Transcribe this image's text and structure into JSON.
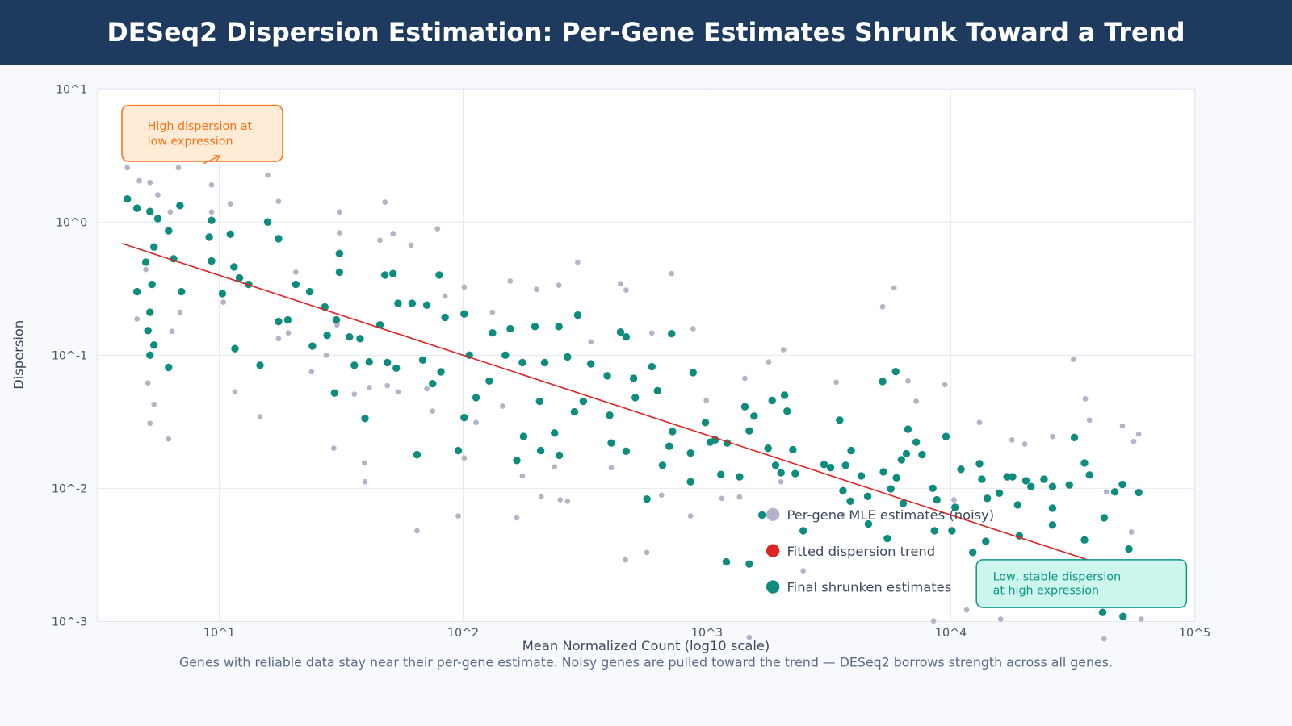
{
  "header": {
    "title": "DESeq2 Dispersion Estimation: Per-Gene Estimates Shrunk Toward a Trend"
  },
  "caption": "Genes with reliable data stay near their per-gene estimate. Noisy genes are pulled toward the trend — DESeq2 borrows strength across all genes.",
  "colors": {
    "header_bg": "#1f3a5f",
    "mle": "#b4b4c8",
    "trend": "#dc2626",
    "final": "#0e8c7e",
    "annot_high_border": "#f97316",
    "annot_high_fill": "#ffebd6",
    "annot_low_border": "#0f9488",
    "annot_low_fill": "#cdf7ec"
  },
  "chart_data": {
    "type": "scatter",
    "xlabel": "Mean Normalized Count (log10 scale)",
    "ylabel": "Dispersion",
    "xscale": "log",
    "yscale": "log",
    "xlim": [
      3.16,
      100000
    ],
    "ylim": [
      0.001,
      10
    ],
    "grid": true,
    "x_ticks": [
      {
        "value": 10,
        "label": "10^1"
      },
      {
        "value": 100,
        "label": "10^2"
      },
      {
        "value": 1000,
        "label": "10^3"
      },
      {
        "value": 10000,
        "label": "10^4"
      },
      {
        "value": 100000,
        "label": "10^5"
      }
    ],
    "y_ticks": [
      {
        "value": 10,
        "label": "10^1"
      },
      {
        "value": 1,
        "label": "10^0"
      },
      {
        "value": 0.1,
        "label": "10^-1"
      },
      {
        "value": 0.01,
        "label": "10^-2"
      },
      {
        "value": 0.001,
        "label": "10^-3"
      }
    ],
    "legend_position": "lower-center-right",
    "legend": [
      "Per-gene MLE estimates (noisy)",
      "Fitted dispersion trend",
      "Final shrunken estimates"
    ],
    "annotations": [
      {
        "text_lines": [
          "High dispersion at",
          "low expression"
        ],
        "position": "top-left"
      },
      {
        "text_lines": [
          "Low, stable dispersion",
          "at high expression"
        ],
        "position": "bottom-right"
      }
    ],
    "series": [
      {
        "name": "Per-gene MLE estimates (noisy)",
        "type": "scatter",
        "points": [
          [
            4.2,
            2.56
          ],
          [
            4.7,
            2.04
          ],
          [
            5.2,
            1.98
          ],
          [
            5.6,
            1.6
          ],
          [
            6.3,
            1.19
          ],
          [
            6.8,
            2.56
          ],
          [
            4.6,
            0.187
          ],
          [
            5.0,
            0.44
          ],
          [
            5.1,
            0.062
          ],
          [
            5.2,
            0.0308
          ],
          [
            5.4,
            0.0427
          ],
          [
            6.2,
            0.0235
          ],
          [
            6.4,
            0.151
          ],
          [
            6.9,
            0.21
          ],
          [
            9.3,
            1.9
          ],
          [
            9.3,
            1.19
          ],
          [
            10.4,
            0.25
          ],
          [
            11.1,
            1.37
          ],
          [
            11.6,
            0.053
          ],
          [
            14.7,
            0.0344
          ],
          [
            15.8,
            2.25
          ],
          [
            17.5,
            1.43
          ],
          [
            17.5,
            0.133
          ],
          [
            19.2,
            0.147
          ],
          [
            20.6,
            0.42
          ],
          [
            23.9,
            0.075
          ],
          [
            27.5,
            0.1
          ],
          [
            29.5,
            0.02
          ],
          [
            31.1,
            1.19
          ],
          [
            31.1,
            0.83
          ],
          [
            30.4,
            0.169
          ],
          [
            35.8,
            0.051
          ],
          [
            39.6,
            0.0112
          ],
          [
            39.4,
            0.0155
          ],
          [
            41.2,
            0.057
          ],
          [
            45.6,
            0.73
          ],
          [
            47.8,
            1.41
          ],
          [
            48.9,
            0.059
          ],
          [
            51.6,
            0.82
          ],
          [
            54.1,
            0.053
          ],
          [
            61.2,
            0.67
          ],
          [
            64.7,
            0.0048
          ],
          [
            71.0,
            0.056
          ],
          [
            75.0,
            0.038
          ],
          [
            78.5,
            0.89
          ],
          [
            84.3,
            0.278
          ],
          [
            95.5,
            0.0062
          ],
          [
            101,
            0.325
          ],
          [
            101,
            0.0169
          ],
          [
            113,
            0.0312
          ],
          [
            132,
            0.21
          ],
          [
            145,
            0.0414
          ],
          [
            156,
            0.36
          ],
          [
            166,
            0.006
          ],
          [
            175,
            0.0124
          ],
          [
            200,
            0.312
          ],
          [
            209,
            0.0087
          ],
          [
            237,
            0.0145
          ],
          [
            247,
            0.335
          ],
          [
            250,
            0.0082
          ],
          [
            268,
            0.008
          ],
          [
            295,
            0.5
          ],
          [
            334,
            0.126
          ],
          [
            405,
            0.0143
          ],
          [
            442,
            0.344
          ],
          [
            463,
            0.0029
          ],
          [
            466,
            0.308
          ],
          [
            567,
            0.0033
          ],
          [
            594,
            0.147
          ],
          [
            651,
            0.0089
          ],
          [
            716,
            0.41
          ],
          [
            856,
            0.0062
          ],
          [
            877,
            0.158
          ],
          [
            993,
            0.0457
          ],
          [
            1150,
            0.0084
          ],
          [
            1360,
            0.0086
          ],
          [
            1430,
            0.067
          ],
          [
            1490,
            0.00076
          ],
          [
            1790,
            0.089
          ],
          [
            2010,
            0.0112
          ],
          [
            2060,
            0.11
          ],
          [
            2480,
            0.0024
          ],
          [
            3390,
            0.0626
          ],
          [
            3610,
            0.0063
          ],
          [
            5250,
            0.231
          ],
          [
            5850,
            0.32
          ],
          [
            6670,
            0.064
          ],
          [
            7210,
            0.045
          ],
          [
            8490,
            0.00101
          ],
          [
            9460,
            0.06
          ],
          [
            10300,
            0.0082
          ],
          [
            11600,
            0.00122
          ],
          [
            13100,
            0.0312
          ],
          [
            16000,
            0.00104
          ],
          [
            17800,
            0.0231
          ],
          [
            20100,
            0.0215
          ],
          [
            26100,
            0.0245
          ],
          [
            31800,
            0.093
          ],
          [
            35600,
            0.0471
          ],
          [
            37000,
            0.0325
          ],
          [
            42500,
            0.00074
          ],
          [
            43400,
            0.0094
          ],
          [
            50500,
            0.0294
          ],
          [
            55000,
            0.0047
          ],
          [
            56200,
            0.0225
          ],
          [
            58900,
            0.0255
          ],
          [
            60300,
            0.00104
          ]
        ]
      },
      {
        "name": "Fitted dispersion trend",
        "type": "line",
        "points": [
          [
            4.0,
            0.69
          ],
          [
            60000,
            0.00215
          ]
        ]
      },
      {
        "name": "Final shrunken estimates",
        "type": "scatter",
        "points": [
          [
            4.2,
            1.49
          ],
          [
            4.6,
            1.27
          ],
          [
            5.2,
            1.2
          ],
          [
            5.6,
            1.06
          ],
          [
            5.4,
            0.65
          ],
          [
            5.0,
            0.5
          ],
          [
            4.6,
            0.3
          ],
          [
            5.3,
            0.34
          ],
          [
            6.9,
            1.33
          ],
          [
            6.2,
            0.86
          ],
          [
            6.5,
            0.53
          ],
          [
            7.0,
            0.3
          ],
          [
            5.2,
            0.21
          ],
          [
            5.1,
            0.153
          ],
          [
            5.2,
            0.1
          ],
          [
            5.4,
            0.119
          ],
          [
            6.2,
            0.081
          ],
          [
            9.3,
            1.03
          ],
          [
            9.1,
            0.77
          ],
          [
            9.3,
            0.51
          ],
          [
            10.3,
            0.29
          ],
          [
            11.1,
            0.81
          ],
          [
            11.5,
            0.46
          ],
          [
            12.1,
            0.38
          ],
          [
            13.2,
            0.34
          ],
          [
            11.6,
            0.112
          ],
          [
            14.7,
            0.084
          ],
          [
            15.8,
            1.0
          ],
          [
            17.5,
            0.75
          ],
          [
            17.5,
            0.179
          ],
          [
            19.1,
            0.184
          ],
          [
            20.6,
            0.34
          ],
          [
            23.5,
            0.3
          ],
          [
            24.1,
            0.117
          ],
          [
            27.1,
            0.23
          ],
          [
            27.7,
            0.141
          ],
          [
            30.2,
            0.184
          ],
          [
            31.1,
            0.58
          ],
          [
            31.1,
            0.42
          ],
          [
            29.7,
            0.052
          ],
          [
            34.2,
            0.137
          ],
          [
            35.8,
            0.084
          ],
          [
            37.8,
            0.133
          ],
          [
            39.6,
            0.0335
          ],
          [
            41.2,
            0.089
          ],
          [
            45.6,
            0.169
          ],
          [
            47.8,
            0.4
          ],
          [
            48.9,
            0.088
          ],
          [
            51.6,
            0.41
          ],
          [
            54.1,
            0.245
          ],
          [
            53.2,
            0.08
          ],
          [
            61.8,
            0.245
          ],
          [
            64.7,
            0.0179
          ],
          [
            68.3,
            0.092
          ],
          [
            71.0,
            0.238
          ],
          [
            75.0,
            0.061
          ],
          [
            79.8,
            0.4
          ],
          [
            84.3,
            0.192
          ],
          [
            81.1,
            0.075
          ],
          [
            95.5,
            0.0192
          ],
          [
            101,
            0.204
          ],
          [
            101,
            0.034
          ],
          [
            106,
            0.1
          ],
          [
            113,
            0.048
          ],
          [
            128,
            0.064
          ],
          [
            132,
            0.147
          ],
          [
            149,
            0.1
          ],
          [
            156,
            0.158
          ],
          [
            166,
            0.0162
          ],
          [
            175,
            0.088
          ],
          [
            177,
            0.0245
          ],
          [
            197,
            0.164
          ],
          [
            206,
            0.045
          ],
          [
            208,
            0.0192
          ],
          [
            216,
            0.088
          ],
          [
            237,
            0.026
          ],
          [
            247,
            0.164
          ],
          [
            248,
            0.0177
          ],
          [
            268,
            0.097
          ],
          [
            286,
            0.0375
          ],
          [
            295,
            0.2
          ],
          [
            311,
            0.045
          ],
          [
            334,
            0.086
          ],
          [
            390,
            0.07
          ],
          [
            399,
            0.0354
          ],
          [
            405,
            0.0219
          ],
          [
            442,
            0.149
          ],
          [
            466,
            0.137
          ],
          [
            466,
            0.019
          ],
          [
            500,
            0.067
          ],
          [
            508,
            0.048
          ],
          [
            567,
            0.0083
          ],
          [
            594,
            0.082
          ],
          [
            627,
            0.054
          ],
          [
            657,
            0.0149
          ],
          [
            700,
            0.0207
          ],
          [
            716,
            0.145
          ],
          [
            722,
            0.0267
          ],
          [
            856,
            0.0184
          ],
          [
            856,
            0.0112
          ],
          [
            877,
            0.074
          ],
          [
            985,
            0.0312
          ],
          [
            1030,
            0.0222
          ],
          [
            1080,
            0.0231
          ],
          [
            1140,
            0.0127
          ],
          [
            1200,
            0.0028
          ],
          [
            1210,
            0.0219
          ],
          [
            1360,
            0.0122
          ],
          [
            1430,
            0.041
          ],
          [
            1490,
            0.0027
          ],
          [
            1490,
            0.027
          ],
          [
            1560,
            0.0349
          ],
          [
            1680,
            0.0063
          ],
          [
            1780,
            0.02
          ],
          [
            1850,
            0.0457
          ],
          [
            1910,
            0.0149
          ],
          [
            2010,
            0.0131
          ],
          [
            2080,
            0.05
          ],
          [
            2130,
            0.038
          ],
          [
            2250,
            0.0195
          ],
          [
            2300,
            0.0129
          ],
          [
            2480,
            0.0048
          ],
          [
            3020,
            0.0151
          ],
          [
            3210,
            0.0143
          ],
          [
            3500,
            0.0325
          ],
          [
            3610,
            0.0096
          ],
          [
            3700,
            0.0149
          ],
          [
            3900,
            0.0192
          ],
          [
            3870,
            0.008
          ],
          [
            4290,
            0.0124
          ],
          [
            4560,
            0.0087
          ],
          [
            4590,
            0.0054
          ],
          [
            5250,
            0.0634
          ],
          [
            5290,
            0.0133
          ],
          [
            5490,
            0.0042
          ],
          [
            5670,
            0.0099
          ],
          [
            5940,
            0.0753
          ],
          [
            5980,
            0.012
          ],
          [
            6270,
            0.0164
          ],
          [
            6370,
            0.0077
          ],
          [
            6570,
            0.0182
          ],
          [
            6670,
            0.0278
          ],
          [
            7210,
            0.0222
          ],
          [
            7620,
            0.0179
          ],
          [
            8430,
            0.01
          ],
          [
            8560,
            0.0048
          ],
          [
            8760,
            0.0082
          ],
          [
            9550,
            0.0245
          ],
          [
            10100,
            0.0048
          ],
          [
            10400,
            0.0072
          ],
          [
            11000,
            0.0139
          ],
          [
            12300,
            0.0033
          ],
          [
            13100,
            0.0153
          ],
          [
            13400,
            0.0117
          ],
          [
            13900,
            0.004
          ],
          [
            14100,
            0.0084
          ],
          [
            15800,
            0.0092
          ],
          [
            17000,
            0.0122
          ],
          [
            17900,
            0.0122
          ],
          [
            18800,
            0.0075
          ],
          [
            19100,
            0.0044
          ],
          [
            20300,
            0.0114
          ],
          [
            21300,
            0.0103
          ],
          [
            24100,
            0.0117
          ],
          [
            26100,
            0.0103
          ],
          [
            26100,
            0.0053
          ],
          [
            26100,
            0.0071
          ],
          [
            30600,
            0.0106
          ],
          [
            32100,
            0.0241
          ],
          [
            35300,
            0.0155
          ],
          [
            37000,
            0.0126
          ],
          [
            35300,
            0.0041
          ],
          [
            42500,
            0.006
          ],
          [
            41900,
            0.00117
          ],
          [
            47000,
            0.0094
          ],
          [
            50800,
            0.00109
          ],
          [
            50500,
            0.0107
          ],
          [
            53700,
            0.0035
          ],
          [
            58900,
            0.0093
          ]
        ]
      }
    ]
  }
}
